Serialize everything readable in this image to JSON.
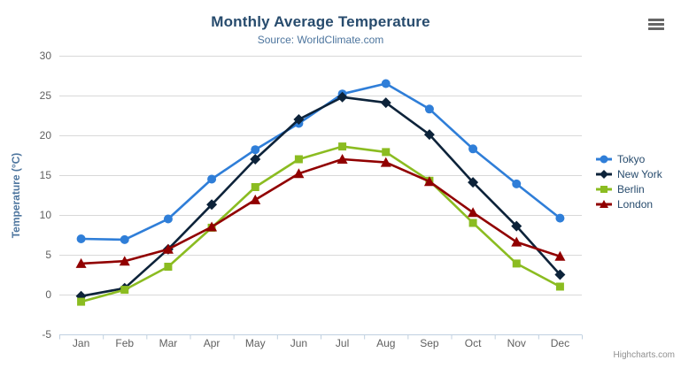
{
  "header": {
    "title": "Monthly Average Temperature",
    "subtitle": "Source: WorldClimate.com"
  },
  "credit": {
    "label": "Highcharts.com"
  },
  "menu": {
    "icon": "hamburger-icon"
  },
  "styles": {
    "title_color": "#274b6d",
    "subtitle_color": "#4d759e",
    "axis_label_color": "#606060",
    "axis_title_color": "#4d759e",
    "legend_text_color": "#274b6d",
    "grid_color": "#d8d8d8",
    "axis_line_color": "#c0d0e0",
    "credit_color": "#909090",
    "menu_icon_color": "#666666",
    "background": "#ffffff"
  },
  "chart_data": {
    "type": "line",
    "title": "Monthly Average Temperature",
    "subtitle": "Source: WorldClimate.com",
    "xlabel": "",
    "ylabel": "Temperature (°C)",
    "categories": [
      "Jan",
      "Feb",
      "Mar",
      "Apr",
      "May",
      "Jun",
      "Jul",
      "Aug",
      "Sep",
      "Oct",
      "Nov",
      "Dec"
    ],
    "ylim": [
      -5,
      30
    ],
    "ytick_step": 5,
    "grid": true,
    "legend_position": "right",
    "series": [
      {
        "name": "Tokyo",
        "color": "#2f7ed8",
        "marker": "circle",
        "values": [
          7.0,
          6.9,
          9.5,
          14.5,
          18.2,
          21.5,
          25.2,
          26.5,
          23.3,
          18.3,
          13.9,
          9.6
        ]
      },
      {
        "name": "New York",
        "color": "#0d233a",
        "marker": "diamond",
        "values": [
          -0.2,
          0.8,
          5.7,
          11.3,
          17.0,
          22.0,
          24.8,
          24.1,
          20.1,
          14.1,
          8.6,
          2.5
        ]
      },
      {
        "name": "Berlin",
        "color": "#8bbc21",
        "marker": "square",
        "values": [
          -0.9,
          0.6,
          3.5,
          8.4,
          13.5,
          17.0,
          18.6,
          17.9,
          14.3,
          9.0,
          3.9,
          1.0
        ]
      },
      {
        "name": "London",
        "color": "#910000",
        "marker": "triangle",
        "values": [
          3.9,
          4.2,
          5.7,
          8.5,
          11.9,
          15.2,
          17.0,
          16.6,
          14.2,
          10.3,
          6.6,
          4.8
        ]
      }
    ]
  }
}
